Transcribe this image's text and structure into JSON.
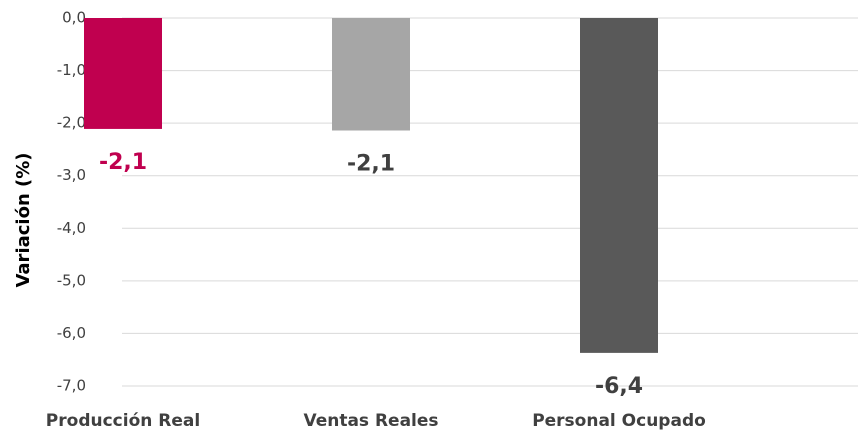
{
  "chart_data": {
    "type": "bar",
    "y_label": "Variación (%)",
    "categories": [
      "Producción Real",
      "Ventas Reales",
      "Personal Ocupado"
    ],
    "values": [
      -2.11,
      -2.14,
      -6.37
    ],
    "value_labels": [
      "-2,1",
      "-2,1",
      "-6,4"
    ],
    "colors": [
      "#c0004f",
      "#a6a6a6",
      "#595959"
    ],
    "value_label_colors": [
      "#c0004f",
      "#404040",
      "#404040"
    ],
    "ylim": [
      -7,
      0
    ],
    "yticks": [
      {
        "value": 0,
        "label": "0,0"
      },
      {
        "value": -1,
        "label": "-1,0"
      },
      {
        "value": -2,
        "label": "-2,0"
      },
      {
        "value": -3,
        "label": "-3,0"
      },
      {
        "value": -4,
        "label": "-4,0"
      },
      {
        "value": -5,
        "label": "-5,0"
      },
      {
        "value": -6,
        "label": "-6,0"
      },
      {
        "value": -7,
        "label": "-7,0"
      }
    ],
    "grid": true
  }
}
